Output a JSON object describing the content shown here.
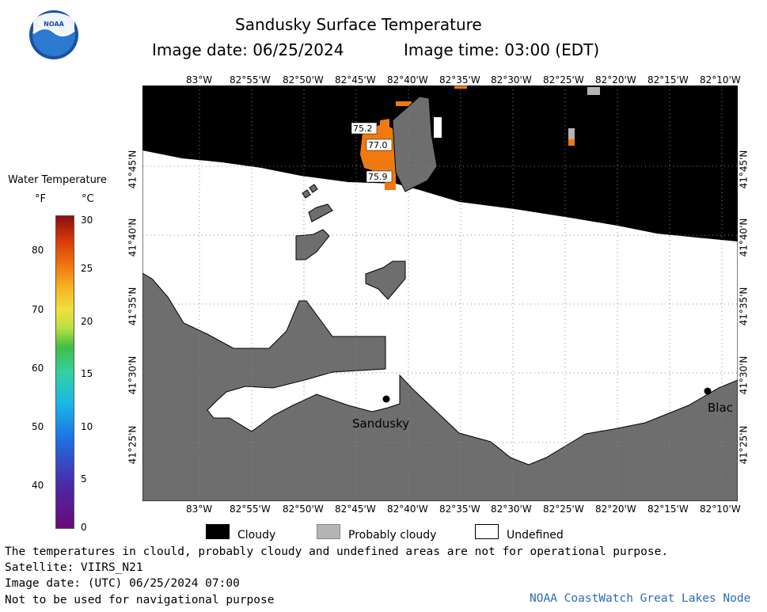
{
  "header": {
    "title": "Sandusky Surface Temperature",
    "image_date_label": "Image date: 06/25/2024",
    "image_time_label": "Image time: 03:00 (EDT)"
  },
  "logo": {
    "text": "NOAA"
  },
  "colorbar": {
    "title": "Water Temperature",
    "unit_f": "°F",
    "unit_c": "°C",
    "f_ticks": [
      "80",
      "70",
      "60",
      "50",
      "40"
    ],
    "c_ticks": [
      "30",
      "25",
      "20",
      "15",
      "10",
      "5",
      "0"
    ],
    "colors": [
      "#6a0a7a",
      "#4a2aa8",
      "#1e6ee0",
      "#18b8e8",
      "#35d0a0",
      "#3fbf45",
      "#b8e040",
      "#f0e040",
      "#f5b520",
      "#f07810",
      "#d83a0a",
      "#8a1010"
    ]
  },
  "map": {
    "lon_labels": [
      "83°W",
      "82°55'W",
      "82°50'W",
      "82°45'W",
      "82°40'W",
      "82°35'W",
      "82°30'W",
      "82°25'W",
      "82°20'W",
      "82°15'W",
      "82°10'W"
    ],
    "lat_labels": [
      "41°45'N",
      "41°40'N",
      "41°35'N",
      "41°30'N",
      "41°25'N"
    ],
    "temperature_labels": [
      "75.2",
      "77.0",
      "75.9"
    ],
    "places": [
      "Sandusky",
      "Blac"
    ],
    "colors": {
      "cloudy": "#000000",
      "land": "#6e6e6e",
      "probably_cloudy": "#b4b4b4",
      "undefined": "#ffffff",
      "warm_water": "#f07a10"
    }
  },
  "legend": {
    "cloudy": "Cloudy",
    "probably_cloudy": "Probably cloudy",
    "undefined": "Undefined"
  },
  "footer": {
    "disclaimer": "The temperatures in clould, probably cloudy and undefined areas are not for operational purpose.",
    "satellite": "Satellite: VIIRS_N21",
    "utc_date": "Image date: (UTC) 06/25/2024  07:00",
    "nav_warning": "Not to be used for navigational purpose",
    "node": "NOAA CoastWatch Great Lakes Node"
  }
}
